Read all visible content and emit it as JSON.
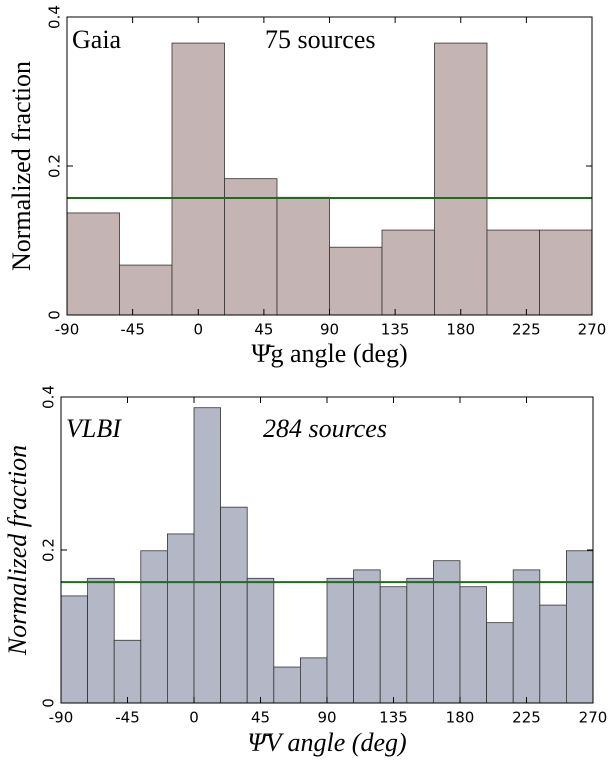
{
  "chart_data": [
    {
      "type": "histogram",
      "xlabel": "Ψ̄g angle (deg)",
      "ylabel": "Normalized fraction",
      "annotations": [
        "Gaia",
        "75 sources"
      ],
      "bins": [
        -90,
        -54,
        -18,
        18,
        54,
        90,
        126,
        162,
        198,
        234,
        270
      ],
      "values": [
        0.137,
        0.067,
        0.365,
        0.183,
        0.158,
        0.091,
        0.114,
        0.365,
        0.114,
        0.114
      ],
      "color": "#c4b4b4",
      "xlim": [
        -90,
        270
      ],
      "ylim": [
        0,
        0.4
      ],
      "xticks": [
        -90,
        -45,
        0,
        45,
        90,
        135,
        180,
        225,
        270
      ],
      "yticks": [
        0,
        0.2,
        0.4
      ],
      "reference_line": {
        "value": 0.157,
        "color": "#1f6b1f"
      }
    },
    {
      "type": "histogram",
      "xlabel": "Ψ̄V angle (deg)",
      "ylabel": "Normalized fraction",
      "annotations": [
        "VLBI",
        "284 sources"
      ],
      "bins": [
        -90,
        -72,
        -54,
        -36,
        -18,
        0,
        18,
        36,
        54,
        72,
        90,
        108,
        126,
        144,
        162,
        180,
        198,
        216,
        234,
        252,
        270
      ],
      "values": [
        0.14,
        0.163,
        0.082,
        0.199,
        0.221,
        0.386,
        0.256,
        0.163,
        0.047,
        0.059,
        0.163,
        0.174,
        0.152,
        0.163,
        0.186,
        0.152,
        0.105,
        0.174,
        0.128,
        0.199
      ],
      "color": "#b4b8c6",
      "xlim": [
        -90,
        270
      ],
      "ylim": [
        0,
        0.4
      ],
      "xticks": [
        -90,
        -45,
        0,
        45,
        90,
        135,
        180,
        225,
        270
      ],
      "yticks": [
        0,
        0.2,
        0.4
      ],
      "reference_line": {
        "value": 0.158,
        "color": "#1f6b1f"
      }
    }
  ]
}
